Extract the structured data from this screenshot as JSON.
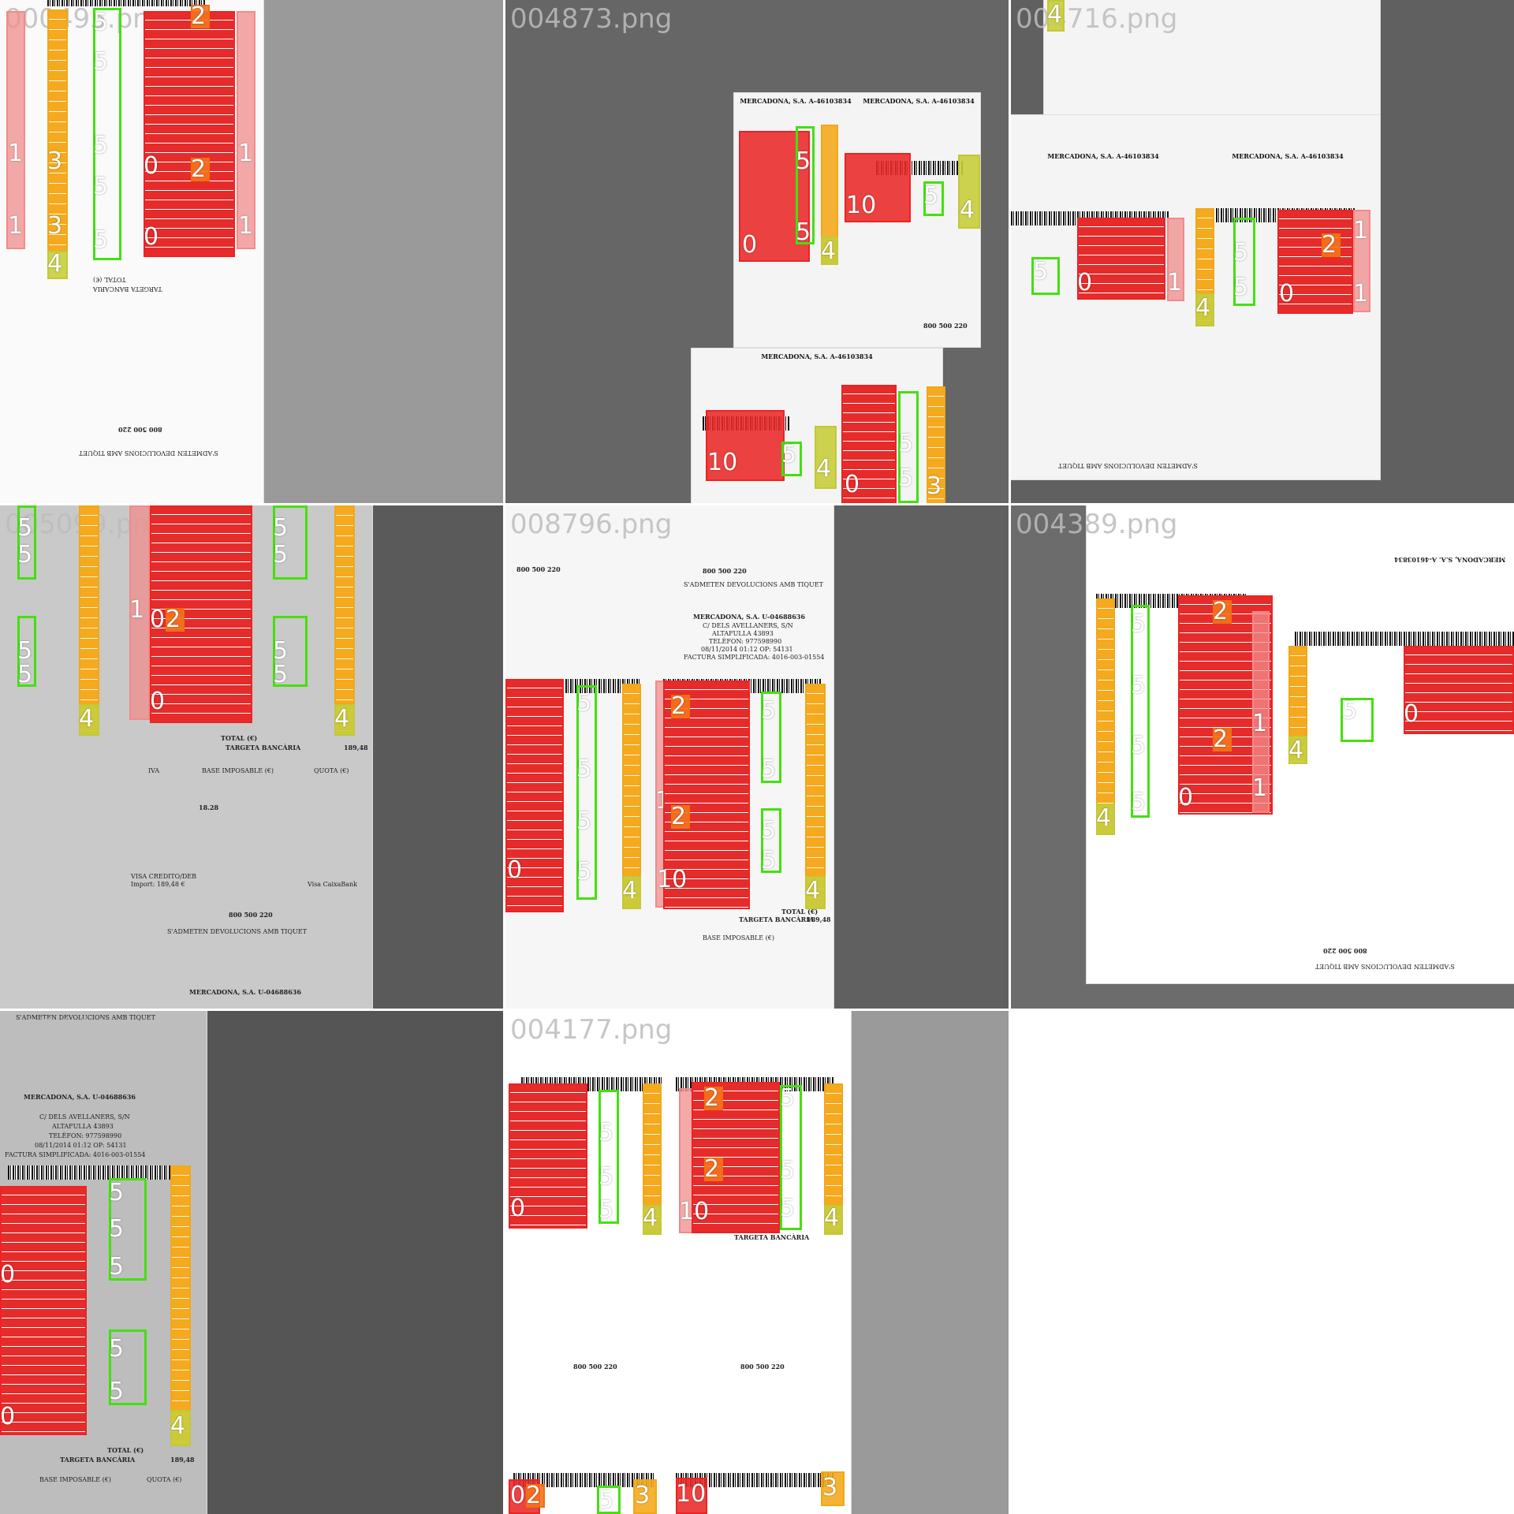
{
  "tiles": [
    {
      "filename": "000495.png"
    },
    {
      "filename": "004873.png"
    },
    {
      "filename": "004716.png"
    },
    {
      "filename": "005099.png"
    },
    {
      "filename": "008796.png"
    },
    {
      "filename": "004389.png"
    },
    {
      "filename": "005144.png"
    },
    {
      "filename": "004177.png"
    }
  ],
  "receipt": {
    "company_a": "MERCADONA, S.A. A-46103834",
    "company_b": "MERCADONA, S.A. U-04688636",
    "street": "C/ DELS AVELLANERS, S/N",
    "city": "ALTAFULLA 43893",
    "phone": "TELÈFON: 977598990",
    "datetime": "08/11/2014 01:12 OP: 54131",
    "invoice": "FACTURA SIMPLIFICADA: 4016-003-01554",
    "total_label": "TOTAL (€)",
    "card_label": "TARGETA BANCÀRIA",
    "total_value": "189,48",
    "total_value_b": "18.28",
    "mercadona_phone": "800 500 220",
    "return_text": "S'ADMETEN DEVOLUCIONS AMB TIQUET",
    "visa": "VISA CREDITO/DEB",
    "amount": "Import: 189,48 €",
    "bank": "Visa CaixaBank",
    "iva_label": "IVA",
    "base_label": "BASE IMPOSABLE (€)",
    "quota_label": "QUOTA (€)"
  },
  "labels": {
    "zero": "0",
    "one": "1",
    "two": "2",
    "three": "3",
    "four": "4",
    "five": "5",
    "ten": "10"
  },
  "colors": {
    "class0": "#e62b2b",
    "class1": "#f28a8a",
    "class2": "#f07010",
    "class3": "#f0a818",
    "class4": "#c3c83a",
    "class5": "#44e010"
  }
}
